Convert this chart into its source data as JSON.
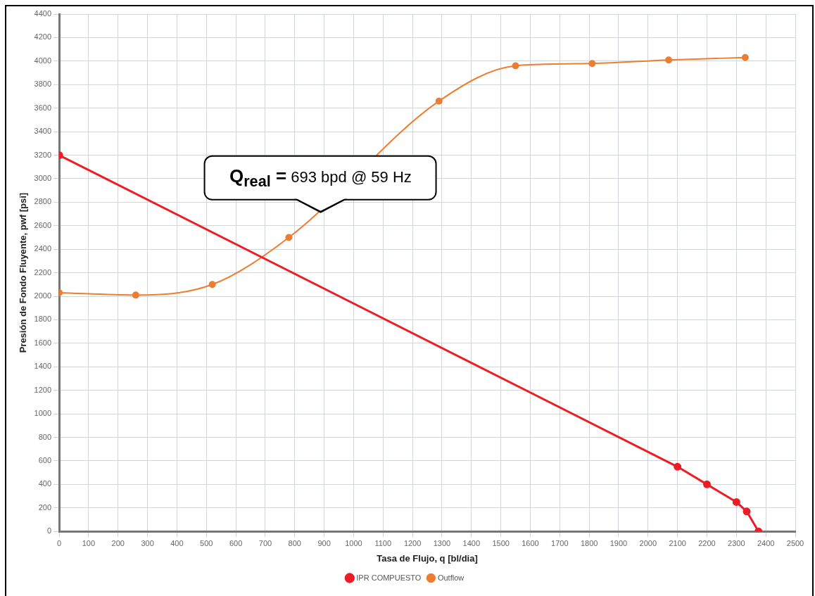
{
  "chart_data": {
    "type": "line",
    "xlabel": "Tasa de Flujo, q [bl/dia]",
    "ylabel": "Presión de Fondo Fluyente, pwf [psi]",
    "series": [
      {
        "name": "IPR COMPUESTO",
        "color": "#ee1c25",
        "x": [
          0,
          2100,
          2200,
          2300,
          2335,
          2375
        ],
        "values": [
          3200,
          550,
          400,
          250,
          170,
          0
        ]
      },
      {
        "name": "Outflow",
        "color": "#ed7d31",
        "x": [
          0,
          260,
          520,
          780,
          1290,
          1550,
          1810,
          2070,
          2330
        ],
        "values": [
          2030,
          2010,
          2100,
          2500,
          3660,
          3960,
          3980,
          4010,
          4030
        ]
      }
    ],
    "xlim": [
      0,
      2500
    ],
    "xticks": [
      0,
      100,
      200,
      300,
      400,
      500,
      600,
      700,
      800,
      900,
      1000,
      1100,
      1200,
      1300,
      1400,
      1500,
      1600,
      1700,
      1800,
      1900,
      2000,
      2100,
      2200,
      2300,
      2400,
      2500
    ],
    "ylim": [
      0,
      4400
    ],
    "yticks": [
      0,
      200,
      400,
      600,
      800,
      1000,
      1200,
      1400,
      1600,
      1800,
      2000,
      2200,
      2400,
      2600,
      2800,
      3000,
      3200,
      3400,
      3600,
      3800,
      4000,
      4200,
      4400
    ],
    "grid": true,
    "legend": "bottom",
    "marker": "circle",
    "line_style": "solid",
    "annotations": [
      "Q$_{real}$ = 693 bpd @ 59 Hz"
    ]
  }
}
